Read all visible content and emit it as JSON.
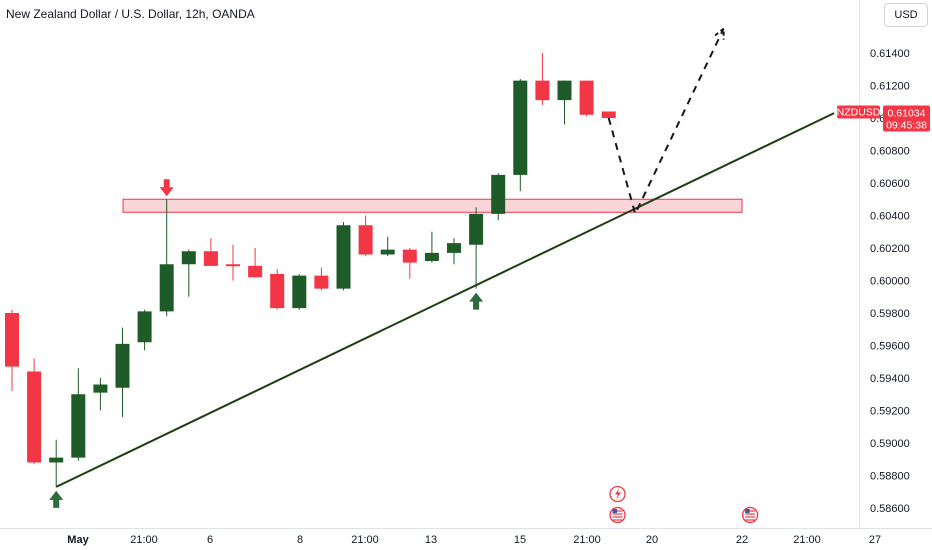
{
  "header": {
    "title": "New Zealand Dollar / U.S. Dollar, 12h, OANDA",
    "currency_button": "USD"
  },
  "price_tag": {
    "symbol": "NZDUSD",
    "price": "0.61034",
    "countdown": "09:45:38",
    "value": 0.61034
  },
  "colors": {
    "up": "#1e5b28",
    "down": "#f23645",
    "zone_fill": "#f7c6cb",
    "zone_border": "#f23645",
    "trendline": "#1e3d12",
    "arrow_down": "#f23645",
    "arrow_up": "#2e6b3a"
  },
  "chart_data": {
    "type": "candlestick",
    "ylim": [
      0.5852,
      0.6163
    ],
    "y_ticks": [
      "0.61400",
      "0.61200",
      "0.61000",
      "0.60800",
      "0.60600",
      "0.60400",
      "0.60200",
      "0.60000",
      "0.59800",
      "0.59600",
      "0.59400",
      "0.59200",
      "0.59000",
      "0.58800",
      "0.58600"
    ],
    "x_ticks": [
      "May",
      "21:00",
      "6",
      "8",
      "21:00",
      "13",
      "15",
      "21:00",
      "20",
      "22",
      "21:00",
      "27"
    ],
    "candles": [
      {
        "o": 0.598,
        "h": 0.5982,
        "l": 0.5932,
        "c": 0.5947
      },
      {
        "o": 0.5944,
        "h": 0.5952,
        "l": 0.5887,
        "c": 0.5888
      },
      {
        "o": 0.5888,
        "h": 0.5902,
        "l": 0.5873,
        "c": 0.5891
      },
      {
        "o": 0.5891,
        "h": 0.5946,
        "l": 0.5889,
        "c": 0.593
      },
      {
        "o": 0.5931,
        "h": 0.594,
        "l": 0.592,
        "c": 0.5936
      },
      {
        "o": 0.5934,
        "h": 0.5971,
        "l": 0.5916,
        "c": 0.5961
      },
      {
        "o": 0.5962,
        "h": 0.5982,
        "l": 0.5957,
        "c": 0.5981
      },
      {
        "o": 0.5981,
        "h": 0.605,
        "l": 0.5978,
        "c": 0.601
      },
      {
        "o": 0.601,
        "h": 0.6019,
        "l": 0.599,
        "c": 0.6018
      },
      {
        "o": 0.6018,
        "h": 0.6026,
        "l": 0.6009,
        "c": 0.6009
      },
      {
        "o": 0.601,
        "h": 0.6022,
        "l": 0.6,
        "c": 0.6009
      },
      {
        "o": 0.6009,
        "h": 0.602,
        "l": 0.6002,
        "c": 0.6002
      },
      {
        "o": 0.6004,
        "h": 0.6007,
        "l": 0.5982,
        "c": 0.5983
      },
      {
        "o": 0.5983,
        "h": 0.6004,
        "l": 0.5982,
        "c": 0.6003
      },
      {
        "o": 0.6003,
        "h": 0.6008,
        "l": 0.5994,
        "c": 0.5995
      },
      {
        "o": 0.5995,
        "h": 0.6036,
        "l": 0.5994,
        "c": 0.6034
      },
      {
        "o": 0.6034,
        "h": 0.604,
        "l": 0.6015,
        "c": 0.6016
      },
      {
        "o": 0.6016,
        "h": 0.6027,
        "l": 0.6015,
        "c": 0.6019
      },
      {
        "o": 0.6019,
        "h": 0.602,
        "l": 0.6001,
        "c": 0.6011
      },
      {
        "o": 0.6012,
        "h": 0.603,
        "l": 0.6011,
        "c": 0.6017
      },
      {
        "o": 0.6017,
        "h": 0.6026,
        "l": 0.601,
        "c": 0.6023
      },
      {
        "o": 0.6022,
        "h": 0.6045,
        "l": 0.5995,
        "c": 0.6041
      },
      {
        "o": 0.6041,
        "h": 0.6066,
        "l": 0.6037,
        "c": 0.6065
      },
      {
        "o": 0.6065,
        "h": 0.6124,
        "l": 0.6055,
        "c": 0.6123
      },
      {
        "o": 0.6123,
        "h": 0.614,
        "l": 0.6108,
        "c": 0.6111
      },
      {
        "o": 0.6111,
        "h": 0.6123,
        "l": 0.6096,
        "c": 0.6123
      },
      {
        "o": 0.6123,
        "h": 0.6123,
        "l": 0.6101,
        "c": 0.6102
      },
      {
        "o": 0.6104,
        "h": 0.6104,
        "l": 0.6099,
        "c": 0.61
      }
    ],
    "resistance_zone": {
      "top": 0.605,
      "bottom": 0.6042
    },
    "trendline": [
      {
        "bar": 2,
        "price": 0.5873
      },
      {
        "bar": 37.2,
        "price": 0.6103
      }
    ],
    "projection": [
      {
        "bar": 27,
        "price": 0.61
      },
      {
        "bar": 28.2,
        "price": 0.6041
      },
      {
        "bar": 32.2,
        "price": 0.6155
      }
    ],
    "markers": [
      {
        "type": "down-arrow",
        "bar": 7,
        "price": 0.605
      },
      {
        "type": "up-arrow",
        "bar": 2,
        "price": 0.5873
      },
      {
        "type": "up-arrow",
        "bar": 21,
        "price": 0.5995
      }
    ],
    "event_icons": [
      {
        "type": "lightning",
        "bar": 27.4
      },
      {
        "type": "us-flag",
        "bar": 27.4
      },
      {
        "type": "us-flag",
        "bar": 33.4
      }
    ]
  }
}
